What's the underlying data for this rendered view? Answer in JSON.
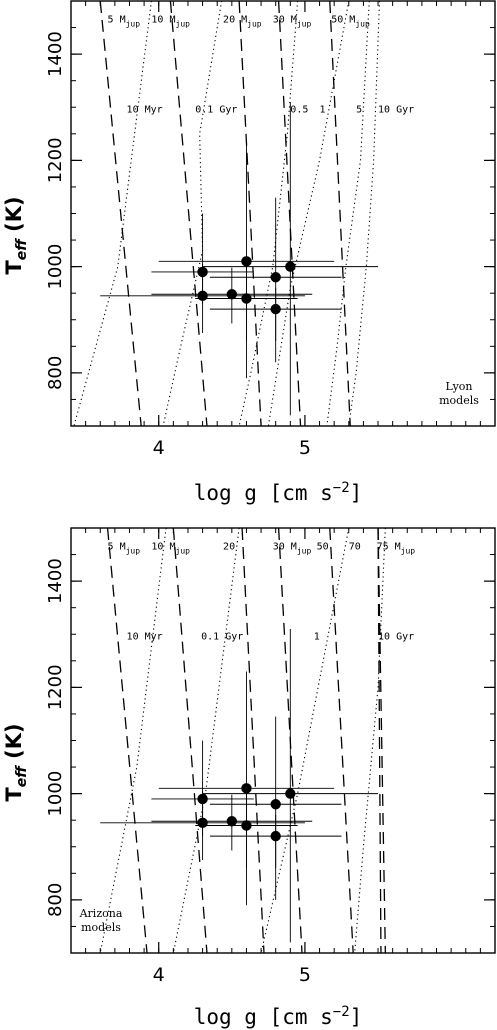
{
  "chart_data": [
    {
      "type": "scatter",
      "title": "",
      "xlabel": "log g [cm s",
      "xlabel_sup": "−2",
      "xlabel_end": "]",
      "ylabel_main": "T",
      "ylabel_sub": "eff",
      "ylabel_unit": " (K)",
      "xlim": [
        3.4,
        6.3
      ],
      "ylim": [
        700,
        1500
      ],
      "xticks": [
        {
          "value": 4,
          "label": "4"
        },
        {
          "value": 5,
          "label": "5"
        }
      ],
      "yticks": [
        {
          "value": 800,
          "label": "800"
        },
        {
          "value": 1000,
          "label": "1000"
        },
        {
          "value": 1200,
          "label": "1200"
        },
        {
          "value": 1400,
          "label": "1400"
        }
      ],
      "xminor_step": 0.1,
      "yminor_step": 50,
      "corner_label": [
        "Lyon",
        "models"
      ],
      "corner_label_position": "bottom-right",
      "points": [
        {
          "x": 4.3,
          "y": 990,
          "xerr": 0.35,
          "yerr_low": 60,
          "yerr_high": 110
        },
        {
          "x": 4.6,
          "y": 1010,
          "xerr": 0.6,
          "yerr_low": 150,
          "yerr_high": 220
        },
        {
          "x": 4.8,
          "y": 980,
          "xerr": 0.45,
          "yerr_low": 120,
          "yerr_high": 150
        },
        {
          "x": 4.9,
          "y": 1000,
          "xerr": 0.6,
          "yerr_low": 280,
          "yerr_high": 310
        },
        {
          "x": 4.3,
          "y": 945,
          "xerr": 0.7,
          "yerr_low": 70,
          "yerr_high": 60
        },
        {
          "x": 4.5,
          "y": 948,
          "xerr": 0.55,
          "yerr_low": 55,
          "yerr_high": 50
        },
        {
          "x": 4.6,
          "y": 940,
          "xerr": 0.35,
          "yerr_low": 150,
          "yerr_high": 60
        },
        {
          "x": 4.8,
          "y": 920,
          "xerr": 0.45,
          "yerr_low": 100,
          "yerr_high": 40
        }
      ],
      "mass_tracks": [
        {
          "label": "5",
          "sub": "jup",
          "points": [
            [
              3.6,
              1500
            ],
            [
              3.88,
              700
            ]
          ]
        },
        {
          "label": "10",
          "sub": "jup",
          "points": [
            [
              4.08,
              1500
            ],
            [
              4.33,
              700
            ]
          ]
        },
        {
          "label": "20",
          "sub": "jup",
          "points": [
            [
              4.55,
              1500
            ],
            [
              4.7,
              700
            ]
          ]
        },
        {
          "label": "30",
          "sub": "jup",
          "points": [
            [
              4.82,
              1500
            ],
            [
              4.97,
              700
            ]
          ]
        },
        {
          "label": "50",
          "sub": "jup",
          "points": [
            [
              5.17,
              1500
            ],
            [
              5.31,
              700
            ]
          ]
        }
      ],
      "mass_labels": [
        {
          "text": "5 M",
          "sub": "jup",
          "x": 3.65,
          "y": 1460
        },
        {
          "text": "10 M",
          "sub": "jup",
          "x": 3.95,
          "y": 1460
        },
        {
          "text": "20 M",
          "sub": "jup",
          "x": 4.44,
          "y": 1460
        },
        {
          "text": "30 M",
          "sub": "jup",
          "x": 4.78,
          "y": 1460
        },
        {
          "text": "50 M",
          "sub": "jup",
          "x": 5.18,
          "y": 1460
        }
      ],
      "isochrones": [
        {
          "label": "10 Myr",
          "points": [
            [
              3.95,
              1500
            ],
            [
              3.72,
              1000
            ],
            [
              3.42,
              700
            ]
          ]
        },
        {
          "label": "0.1 Gyr",
          "points": [
            [
              4.43,
              1500
            ],
            [
              4.28,
              1250
            ],
            [
              4.3,
              1030
            ],
            [
              4.15,
              850
            ],
            [
              4.03,
              700
            ]
          ]
        },
        {
          "label": "0.5",
          "points": [
            [
              4.95,
              1500
            ],
            [
              4.88,
              1250
            ],
            [
              4.78,
              1000
            ],
            [
              4.63,
              800
            ],
            [
              4.55,
              700
            ]
          ]
        },
        {
          "label": "1",
          "points": [
            [
              5.3,
              1500
            ],
            [
              5.1,
              1200
            ],
            [
              4.9,
              960
            ],
            [
              4.75,
              700
            ]
          ]
        },
        {
          "label": "5",
          "points": [
            [
              5.44,
              1500
            ],
            [
              5.38,
              1200
            ],
            [
              5.28,
              1000
            ],
            [
              5.22,
              850
            ],
            [
              5.15,
              700
            ]
          ]
        },
        {
          "label": "10 Gyr",
          "points": [
            [
              5.51,
              1500
            ],
            [
              5.47,
              1200
            ],
            [
              5.42,
              1000
            ],
            [
              5.35,
              800
            ],
            [
              5.3,
              700
            ]
          ]
        }
      ],
      "iso_labels": [
        {
          "text": "10 Myr",
          "x": 3.78,
          "y": 1290
        },
        {
          "text": "0.1 Gyr",
          "x": 4.25,
          "y": 1290
        },
        {
          "text": "0.5",
          "x": 4.9,
          "y": 1290
        },
        {
          "text": "1",
          "x": 5.1,
          "y": 1290
        },
        {
          "text": "5",
          "x": 5.35,
          "y": 1290
        },
        {
          "text": "10 Gyr",
          "x": 5.5,
          "y": 1290
        }
      ]
    },
    {
      "type": "scatter",
      "title": "",
      "xlabel": "log g [cm s",
      "xlabel_sup": "−2",
      "xlabel_end": "]",
      "ylabel_main": "T",
      "ylabel_sub": "eff",
      "ylabel_unit": " (K)",
      "xlim": [
        3.4,
        6.3
      ],
      "ylim": [
        700,
        1500
      ],
      "xticks": [
        {
          "value": 4,
          "label": "4"
        },
        {
          "value": 5,
          "label": "5"
        }
      ],
      "yticks": [
        {
          "value": 800,
          "label": "800"
        },
        {
          "value": 1000,
          "label": "1000"
        },
        {
          "value": 1200,
          "label": "1200"
        },
        {
          "value": 1400,
          "label": "1400"
        }
      ],
      "xminor_step": 0.1,
      "yminor_step": 50,
      "corner_label": [
        "Arizona",
        "models"
      ],
      "corner_label_position": "bottom-left",
      "points": [
        {
          "x": 4.3,
          "y": 990,
          "xerr": 0.35,
          "yerr_low": 70,
          "yerr_high": 110
        },
        {
          "x": 4.6,
          "y": 1010,
          "xerr": 0.6,
          "yerr_low": 150,
          "yerr_high": 220
        },
        {
          "x": 4.8,
          "y": 980,
          "xerr": 0.45,
          "yerr_low": 120,
          "yerr_high": 165
        },
        {
          "x": 4.9,
          "y": 1000,
          "xerr": 0.6,
          "yerr_low": 280,
          "yerr_high": 310
        },
        {
          "x": 4.3,
          "y": 945,
          "xerr": 0.7,
          "yerr_low": 70,
          "yerr_high": 60
        },
        {
          "x": 4.5,
          "y": 948,
          "xerr": 0.55,
          "yerr_low": 55,
          "yerr_high": 50
        },
        {
          "x": 4.6,
          "y": 940,
          "xerr": 0.35,
          "yerr_low": 150,
          "yerr_high": 60
        },
        {
          "x": 4.8,
          "y": 920,
          "xerr": 0.45,
          "yerr_low": 120,
          "yerr_high": 40
        }
      ],
      "mass_tracks": [
        {
          "label": "5",
          "sub": "jup",
          "points": [
            [
              3.65,
              1500
            ],
            [
              3.92,
              700
            ]
          ]
        },
        {
          "label": "10",
          "sub": "jup",
          "points": [
            [
              4.1,
              1500
            ],
            [
              4.33,
              700
            ]
          ]
        },
        {
          "label": "20",
          "sub": "jup",
          "points": [
            [
              4.57,
              1500
            ],
            [
              4.72,
              700
            ]
          ]
        },
        {
          "label": "30",
          "sub": "jup",
          "points": [
            [
              4.82,
              1500
            ],
            [
              4.98,
              700
            ]
          ]
        },
        {
          "label": "50",
          "sub": "jup",
          "points": [
            [
              5.17,
              1500
            ],
            [
              5.33,
              700
            ]
          ]
        },
        {
          "label": "70",
          "sub": "jup",
          "points": [
            [
              5.5,
              1500
            ],
            [
              5.52,
              700
            ]
          ]
        },
        {
          "label": "75",
          "sub": "jup",
          "points": [
            [
              5.5,
              1500
            ],
            [
              5.55,
              700
            ]
          ]
        }
      ],
      "mass_labels": [
        {
          "text": "5 M",
          "sub": "jup",
          "x": 3.65,
          "y": 1460
        },
        {
          "text": "10 M",
          "sub": "jup",
          "x": 3.95,
          "y": 1460
        },
        {
          "text": "20",
          "sub": "",
          "x": 4.44,
          "y": 1460
        },
        {
          "text": "30 M",
          "sub": "jup",
          "x": 4.78,
          "y": 1460
        },
        {
          "text": "50",
          "sub": "",
          "x": 5.08,
          "y": 1460
        },
        {
          "text": "70",
          "sub": "",
          "x": 5.3,
          "y": 1460
        },
        {
          "text": "75 M",
          "sub": "jup",
          "x": 5.49,
          "y": 1460
        }
      ],
      "isochrones": [
        {
          "label": "10 Myr",
          "points": [
            [
              4.05,
              1500
            ],
            [
              3.85,
              1050
            ],
            [
              3.6,
              700
            ]
          ]
        },
        {
          "label": "0.1 Gyr",
          "points": [
            [
              4.55,
              1500
            ],
            [
              4.32,
              1000
            ],
            [
              4.1,
              700
            ]
          ]
        },
        {
          "label": "1",
          "points": [
            [
              5.3,
              1500
            ],
            [
              4.95,
              1000
            ],
            [
              4.7,
              700
            ]
          ]
        },
        {
          "label": "10 Gyr",
          "points": [
            [
              5.55,
              1500
            ],
            [
              5.5,
              1200
            ],
            [
              5.4,
              900
            ],
            [
              5.34,
              700
            ]
          ]
        }
      ],
      "iso_labels": [
        {
          "text": "10 Myr",
          "x": 3.78,
          "y": 1290
        },
        {
          "text": "0.1 Gyr",
          "x": 4.29,
          "y": 1290
        },
        {
          "text": "1",
          "x": 5.06,
          "y": 1290
        },
        {
          "text": "10 Gyr",
          "x": 5.5,
          "y": 1290
        }
      ]
    }
  ]
}
